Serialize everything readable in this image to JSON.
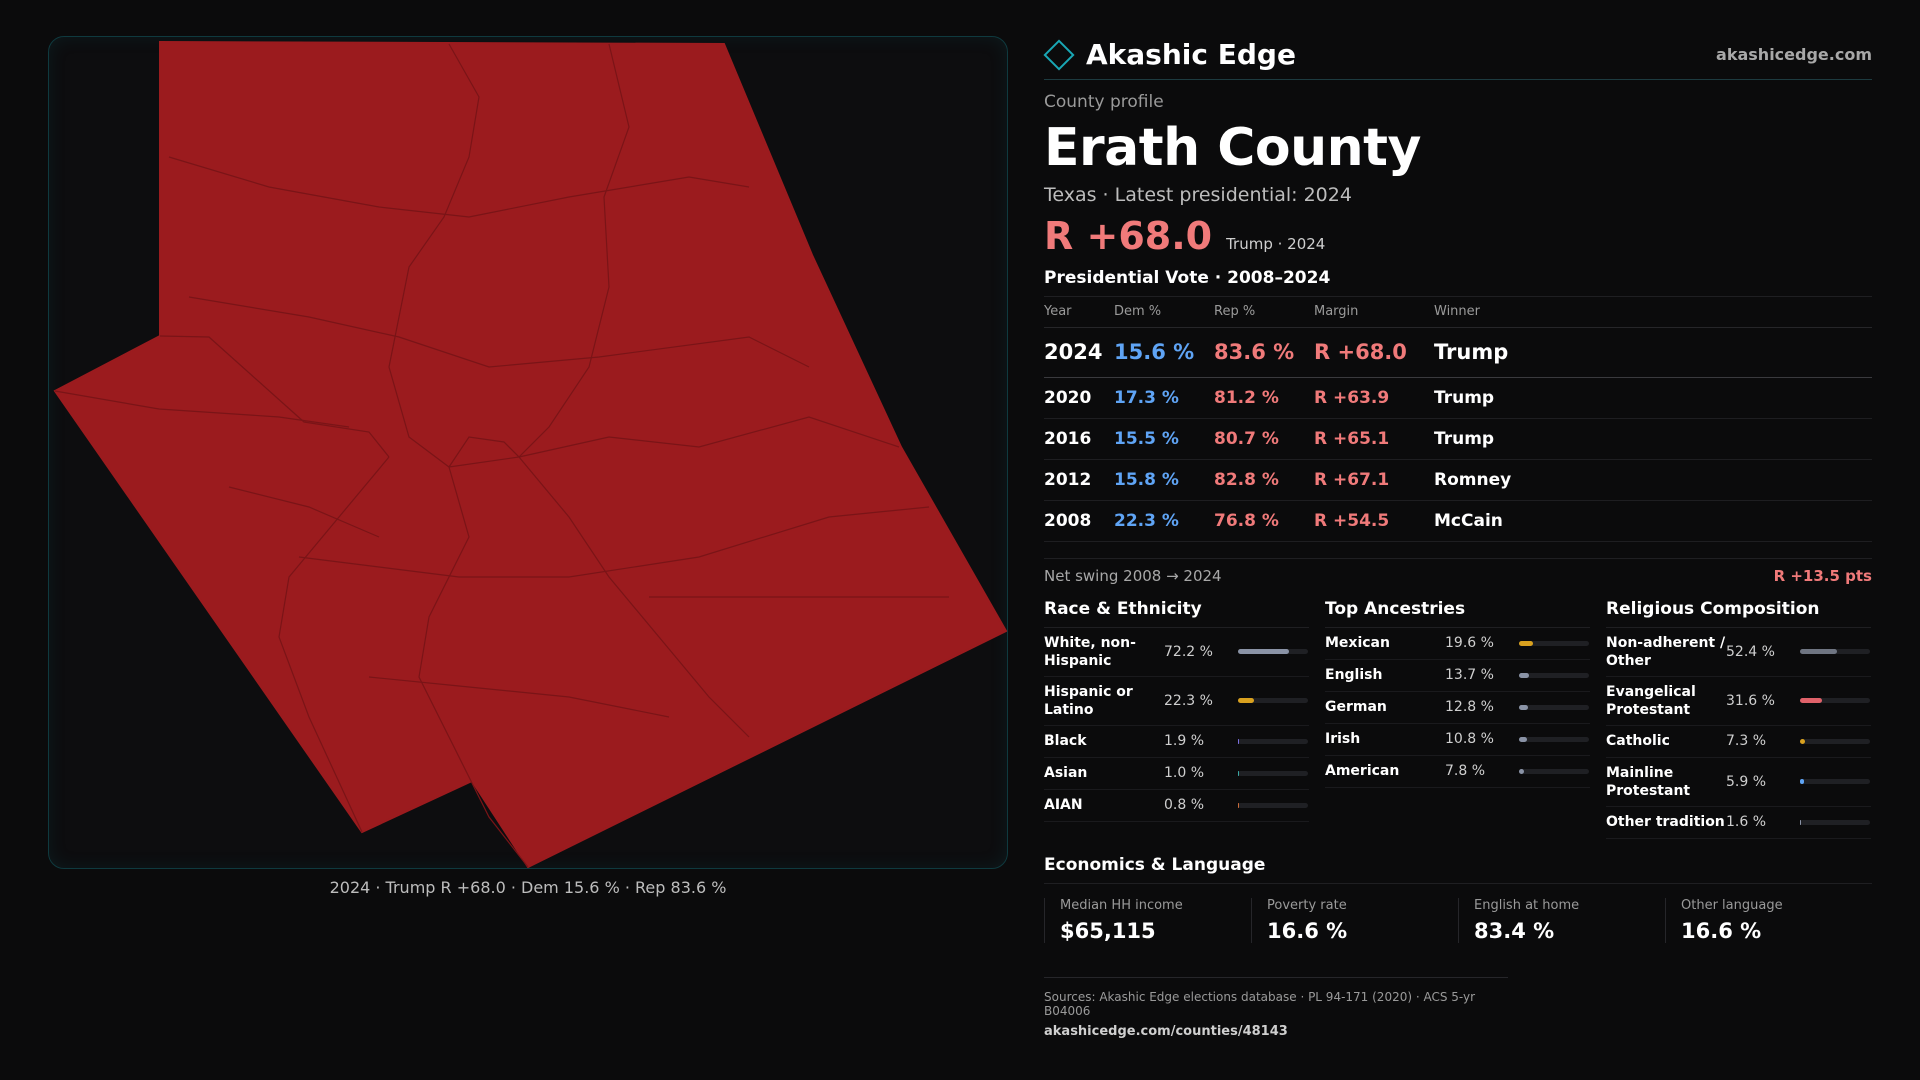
{
  "map": {
    "caption": "2024 · Trump R +68.0 · Dem 15.6 % · Rep 83.6 %",
    "fill_color": "#9b1b1e",
    "line_color": "#7a1417"
  },
  "brand": {
    "name": "Akashic Edge",
    "url": "akashicedge.com",
    "accent": "#19a7b5"
  },
  "profile": {
    "eyebrow": "County profile",
    "county": "Erath County",
    "subtitle": "Texas · Latest presidential: 2024",
    "headline_margin": "R +68.0",
    "headline_note": "Trump · 2024"
  },
  "votes": {
    "title": "Presidential Vote · 2008–2024",
    "headers": [
      "Year",
      "Dem %",
      "Rep %",
      "Margin",
      "Winner"
    ],
    "rows": [
      {
        "year": "2024",
        "dem": "15.6 %",
        "rep": "83.6 %",
        "margin": "R +68.0",
        "winner": "Trump"
      },
      {
        "year": "2020",
        "dem": "17.3 %",
        "rep": "81.2 %",
        "margin": "R +63.9",
        "winner": "Trump"
      },
      {
        "year": "2016",
        "dem": "15.5 %",
        "rep": "80.7 %",
        "margin": "R +65.1",
        "winner": "Trump"
      },
      {
        "year": "2012",
        "dem": "15.8 %",
        "rep": "82.8 %",
        "margin": "R +67.1",
        "winner": "Romney"
      },
      {
        "year": "2008",
        "dem": "22.3 %",
        "rep": "76.8 %",
        "margin": "R +54.5",
        "winner": "McCain"
      }
    ],
    "swing_label": "Net swing 2008 → 2024",
    "swing_value": "R +13.5 pts"
  },
  "race": {
    "title": "Race & Ethnicity",
    "items": [
      {
        "label": "White, non-Hispanic",
        "value": "72.2 %",
        "pct": 72.2,
        "color": "#8a93a6"
      },
      {
        "label": "Hispanic or Latino",
        "value": "22.3 %",
        "pct": 22.3,
        "color": "#d9a11f"
      },
      {
        "label": "Black",
        "value": "1.9 %",
        "pct": 1.9,
        "color": "#7b6fe0"
      },
      {
        "label": "Asian",
        "value": "1.0 %",
        "pct": 1.0,
        "color": "#3aa7a3"
      },
      {
        "label": "AIAN",
        "value": "0.8 %",
        "pct": 0.8,
        "color": "#c96b3a"
      }
    ]
  },
  "ancestry": {
    "title": "Top Ancestries",
    "items": [
      {
        "label": "Mexican",
        "value": "19.6 %",
        "pct": 19.6,
        "color": "#d9a11f"
      },
      {
        "label": "English",
        "value": "13.7 %",
        "pct": 13.7,
        "color": "#8a93a6"
      },
      {
        "label": "German",
        "value": "12.8 %",
        "pct": 12.8,
        "color": "#8a93a6"
      },
      {
        "label": "Irish",
        "value": "10.8 %",
        "pct": 10.8,
        "color": "#8a93a6"
      },
      {
        "label": "American",
        "value": "7.8 %",
        "pct": 7.8,
        "color": "#8a93a6"
      }
    ]
  },
  "religion": {
    "title": "Religious Composition",
    "items": [
      {
        "label": "Non-adherent / Other",
        "value": "52.4 %",
        "pct": 52.4,
        "color": "#6f7582"
      },
      {
        "label": "Evangelical Protestant",
        "value": "31.6 %",
        "pct": 31.6,
        "color": "#e0626a"
      },
      {
        "label": "Catholic",
        "value": "7.3 %",
        "pct": 7.3,
        "color": "#d9a11f"
      },
      {
        "label": "Mainline Protestant",
        "value": "5.9 %",
        "pct": 5.9,
        "color": "#5fa4f5"
      },
      {
        "label": "Other tradition",
        "value": "1.6 %",
        "pct": 1.6,
        "color": "#8a93a6"
      }
    ]
  },
  "economics": {
    "title": "Economics & Language",
    "cells": [
      {
        "label": "Median HH income",
        "value": "$65,115"
      },
      {
        "label": "Poverty rate",
        "value": "16.6 %"
      },
      {
        "label": "English at home",
        "value": "83.4 %"
      },
      {
        "label": "Other language",
        "value": "16.6 %"
      }
    ]
  },
  "footer": {
    "sources": "Sources: Akashic Edge elections database · PL 94-171 (2020) · ACS 5-yr B04006",
    "url": "akashicedge.com/counties/48143"
  }
}
